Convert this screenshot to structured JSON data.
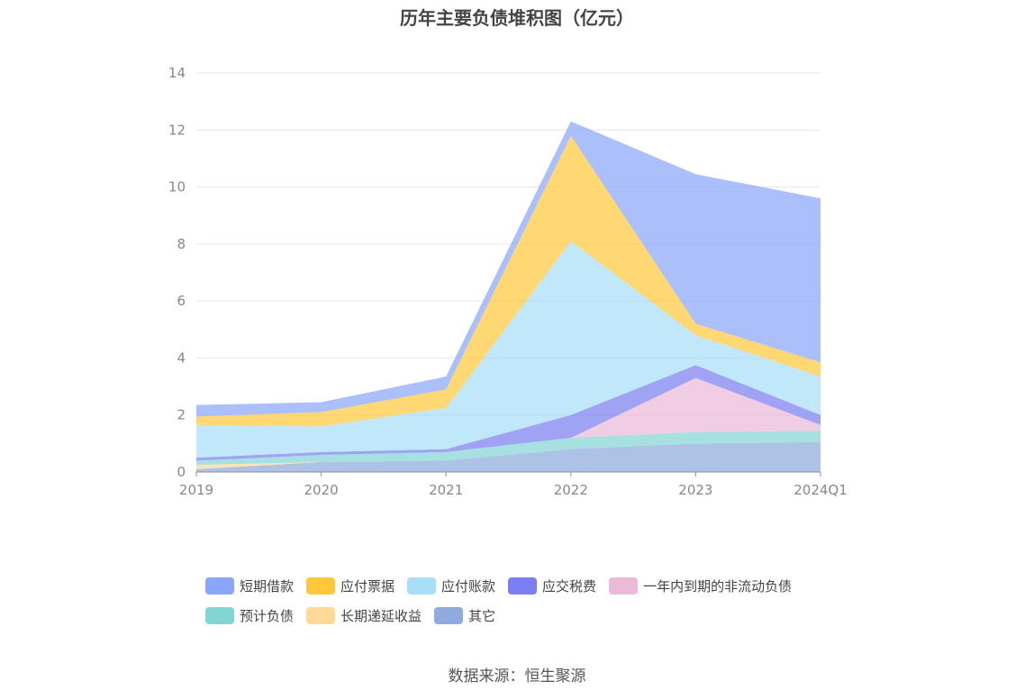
{
  "chart_data": {
    "type": "area",
    "stacked": true,
    "title": "历年主要负债堆积图（亿元）",
    "categories": [
      "2019",
      "2020",
      "2021",
      "2022",
      "2023",
      "2024Q1"
    ],
    "ylim": [
      0,
      14
    ],
    "yticks": [
      "0",
      "2",
      "4",
      "6",
      "8",
      "10",
      "12",
      "14"
    ],
    "grid": true,
    "legend_position": "bottom",
    "series": [
      {
        "name": "其它",
        "color": "#8faadc",
        "values": [
          0.1,
          0.35,
          0.4,
          0.8,
          1.0,
          1.05
        ]
      },
      {
        "name": "长期递延收益",
        "color": "#ffd89a",
        "values": [
          0.15,
          0.0,
          0.0,
          0.0,
          0.0,
          0.0
        ]
      },
      {
        "name": "预计负债",
        "color": "#85d4d4",
        "values": [
          0.15,
          0.25,
          0.3,
          0.4,
          0.4,
          0.4
        ]
      },
      {
        "name": "一年内到期的非流动负债",
        "color": "#ebbad9",
        "values": [
          0.0,
          0.0,
          0.0,
          0.0,
          1.9,
          0.2
        ]
      },
      {
        "name": "应交税费",
        "color": "#7b7ef0",
        "values": [
          0.1,
          0.1,
          0.1,
          0.8,
          0.45,
          0.35
        ]
      },
      {
        "name": "应付账款",
        "color": "#a8def8",
        "values": [
          1.15,
          0.9,
          1.45,
          6.1,
          1.05,
          1.35
        ]
      },
      {
        "name": "应付票据",
        "color": "#ffc83d",
        "values": [
          0.3,
          0.5,
          0.65,
          3.7,
          0.4,
          0.5
        ]
      },
      {
        "name": "短期借款",
        "color": "#8aa6fa",
        "values": [
          0.4,
          0.35,
          0.45,
          0.5,
          5.25,
          5.75
        ]
      }
    ]
  },
  "legend": {
    "items": [
      {
        "name": "短期借款",
        "color": "#8aa6fa"
      },
      {
        "name": "应付票据",
        "color": "#ffc83d"
      },
      {
        "name": "应付账款",
        "color": "#a8def8"
      },
      {
        "name": "应交税费",
        "color": "#7b7ef0"
      },
      {
        "name": "一年内到期的非流动负债",
        "color": "#ebbad9"
      },
      {
        "name": "预计负债",
        "color": "#85d4d4"
      },
      {
        "name": "长期递延收益",
        "color": "#ffd89a"
      },
      {
        "name": "其它",
        "color": "#8faadc"
      }
    ]
  },
  "source": "数据来源：恒生聚源"
}
